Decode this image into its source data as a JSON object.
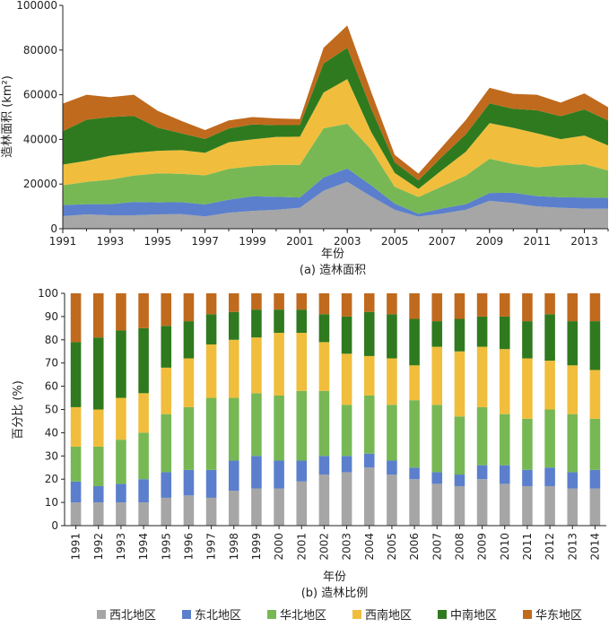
{
  "colors": {
    "西北地区": "#a6a6a6",
    "东北地区": "#5b7fcc",
    "华北地区": "#77b855",
    "西南地区": "#f0be3c",
    "中南地区": "#2f7a1f",
    "华东地区": "#c06a1e"
  },
  "legend": [
    "西北地区",
    "东北地区",
    "华北地区",
    "西南地区",
    "中南地区",
    "华东地区"
  ],
  "chart_data": [
    {
      "type": "area",
      "stacked": true,
      "caption": "(a) 造林面积",
      "xlabel": "年份",
      "ylabel": "造林面积 (km²)",
      "ylim": [
        0,
        100000
      ],
      "yticks": [
        0,
        20000,
        40000,
        60000,
        80000,
        100000
      ],
      "yticklabels": [
        "0",
        "20000",
        "40000",
        "60000",
        "80000",
        "100000"
      ],
      "xlim": [
        1991,
        2014
      ],
      "xticks": [
        1991,
        1993,
        1995,
        1997,
        1999,
        2001,
        2003,
        2005,
        2007,
        2009,
        2011,
        2013
      ],
      "xticklabels": [
        "1991",
        "1993",
        "1995",
        "1997",
        "1999",
        "2001",
        "2003",
        "2005",
        "2007",
        "2009",
        "2011",
        "2013"
      ],
      "x": [
        1991,
        1992,
        1993,
        1994,
        1995,
        1996,
        1997,
        1998,
        1999,
        2000,
        2001,
        2002,
        2003,
        2004,
        2005,
        2006,
        2007,
        2008,
        2009,
        2010,
        2011,
        2012,
        2013,
        2014
      ],
      "grid": false,
      "series": [
        {
          "name": "西北地区",
          "values": [
            5600,
            6400,
            6000,
            6000,
            6400,
            6500,
            5500,
            7200,
            8000,
            8500,
            9400,
            17000,
            21000,
            14500,
            8500,
            5400,
            6800,
            8500,
            12500,
            11500,
            10000,
            9400,
            9000,
            9000
          ]
        },
        {
          "name": "东北地区",
          "values": [
            5000,
            4600,
            5000,
            6000,
            5400,
            5400,
            5400,
            5800,
            6500,
            5800,
            4600,
            6000,
            6000,
            5000,
            2800,
            1300,
            2300,
            2500,
            3500,
            4600,
            4600,
            4700,
            5000,
            4800
          ]
        },
        {
          "name": "华北地区",
          "values": [
            8900,
            10000,
            11000,
            11800,
            13000,
            12700,
            13000,
            13800,
            13500,
            14300,
            14600,
            22000,
            20000,
            16000,
            7500,
            7500,
            9900,
            12800,
            15300,
            12900,
            12900,
            14300,
            14900,
            12300
          ]
        },
        {
          "name": "西南地区",
          "values": [
            9200,
            9400,
            10700,
            10200,
            10100,
            10600,
            10100,
            11900,
            12000,
            12500,
            12600,
            16000,
            20000,
            8000,
            6200,
            3600,
            7300,
            10700,
            16000,
            16200,
            15200,
            11700,
            12800,
            11200
          ]
        },
        {
          "name": "中南地区",
          "values": [
            15000,
            18400,
            17300,
            16500,
            10400,
            7500,
            6200,
            6200,
            6700,
            5300,
            5200,
            13000,
            14000,
            10500,
            4700,
            3900,
            6000,
            7800,
            8800,
            8500,
            10300,
            10300,
            11700,
            11200
          ]
        },
        {
          "name": "华东地区",
          "values": [
            12300,
            11200,
            8900,
            9500,
            7500,
            5600,
            4000,
            3600,
            3300,
            3000,
            2700,
            7000,
            10000,
            7500,
            3400,
            3000,
            4400,
            6400,
            7000,
            6700,
            7000,
            6100,
            7200,
            5900
          ]
        }
      ]
    },
    {
      "type": "bar",
      "stacked": true,
      "caption": "(b) 造林比例",
      "xlabel": "年份",
      "ylabel": "百分比 (%)",
      "ylim": [
        0,
        100
      ],
      "yticks": [
        0,
        10,
        20,
        30,
        40,
        50,
        60,
        70,
        80,
        90,
        100
      ],
      "yticklabels": [
        "0",
        "10",
        "20",
        "30",
        "40",
        "50",
        "60",
        "70",
        "80",
        "90",
        "100"
      ],
      "categories": [
        "1991",
        "1992",
        "1993",
        "1994",
        "1995",
        "1996",
        "1997",
        "1998",
        "1999",
        "2000",
        "2001",
        "2002",
        "2003",
        "2004",
        "2005",
        "2006",
        "2007",
        "2008",
        "2009",
        "2010",
        "2011",
        "2012",
        "2013",
        "2014"
      ],
      "grid": false,
      "series": [
        {
          "name": "西北地区",
          "values": [
            10,
            10,
            10,
            10,
            12,
            13,
            12,
            15,
            16,
            16,
            19,
            22,
            23,
            25,
            22,
            20,
            18,
            17,
            20,
            18,
            17,
            17,
            16,
            16
          ]
        },
        {
          "name": "东北地区",
          "values": [
            9,
            7,
            8,
            10,
            11,
            11,
            12,
            13,
            14,
            12,
            9,
            8,
            7,
            6,
            6,
            5,
            5,
            5,
            6,
            8,
            7,
            8,
            7,
            8
          ]
        },
        {
          "name": "华北地区",
          "values": [
            15,
            17,
            19,
            20,
            25,
            27,
            31,
            27,
            27,
            28,
            30,
            28,
            22,
            25,
            24,
            29,
            29,
            25,
            25,
            22,
            22,
            25,
            25,
            22
          ]
        },
        {
          "name": "西南地区",
          "values": [
            17,
            16,
            18,
            17,
            20,
            21,
            23,
            25,
            24,
            27,
            25,
            21,
            22,
            17,
            20,
            15,
            25,
            28,
            26,
            28,
            26,
            21,
            21,
            21
          ]
        },
        {
          "name": "中南地区",
          "values": [
            28,
            31,
            29,
            28,
            18,
            16,
            13,
            12,
            12,
            10,
            10,
            12,
            16,
            19,
            19,
            20,
            11,
            14,
            13,
            14,
            16,
            20,
            19,
            21
          ]
        },
        {
          "name": "华东地区",
          "values": [
            21,
            19,
            16,
            15,
            14,
            12,
            9,
            8,
            7,
            7,
            7,
            9,
            10,
            8,
            9,
            11,
            12,
            11,
            10,
            10,
            12,
            9,
            12,
            12
          ]
        }
      ]
    }
  ]
}
